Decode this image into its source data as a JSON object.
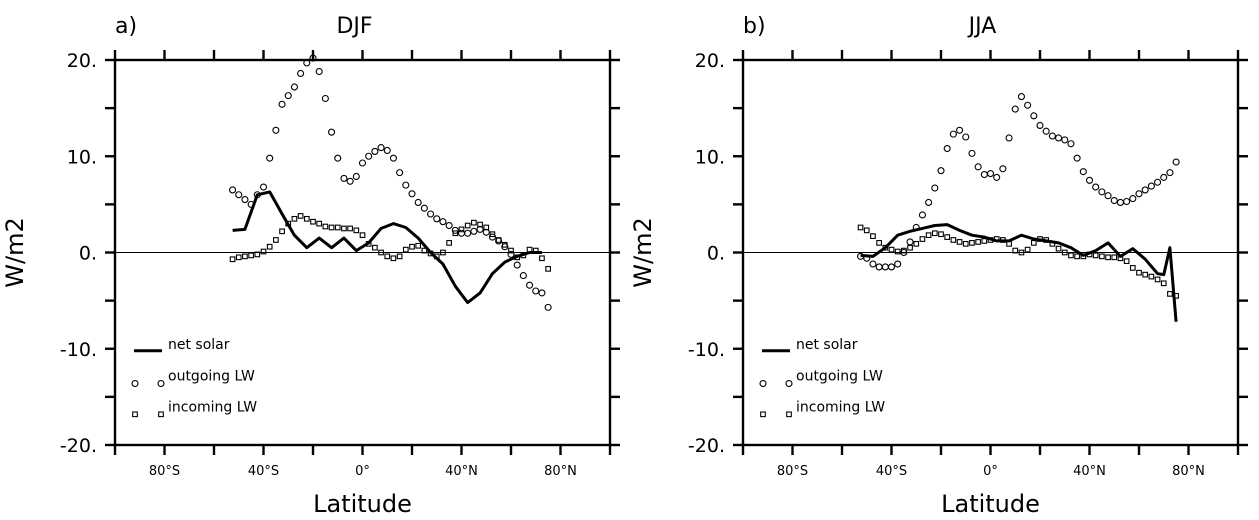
{
  "chart_data": [
    {
      "type": "line",
      "panel_label": "a)",
      "title": "DJF",
      "xlabel": "Latitude",
      "ylabel": "W/m2",
      "xlim": [
        -100,
        100
      ],
      "ylim": [
        -20,
        20
      ],
      "xticks": [
        {
          "value": -80,
          "label": "80°S"
        },
        {
          "value": -40,
          "label": "40°S"
        },
        {
          "value": 0,
          "label": "0°"
        },
        {
          "value": 40,
          "label": "40°N"
        },
        {
          "value": 80,
          "label": "80°N"
        }
      ],
      "yticks": [
        {
          "value": 20,
          "label": "20."
        },
        {
          "value": 10,
          "label": "10."
        },
        {
          "value": 0,
          "label": "0."
        },
        {
          "value": -10,
          "label": "-10."
        },
        {
          "value": -20,
          "label": "-20."
        }
      ],
      "legend_position": "bottom-left",
      "series": [
        {
          "name": "net solar",
          "style": "line",
          "x": [
            -52.5,
            -47.5,
            -42.5,
            -37.5,
            -32.5,
            -27.5,
            -22.5,
            -17.5,
            -12.5,
            -7.5,
            -2.5,
            2.5,
            7.5,
            12.5,
            17.5,
            22.5,
            27.5,
            32.5,
            37.5,
            42.5,
            47.5,
            52.5,
            57.5,
            62.5,
            67.5,
            72.5
          ],
          "y": [
            2.3,
            2.4,
            6.0,
            6.3,
            4.0,
            1.8,
            0.5,
            1.5,
            0.5,
            1.5,
            0.2,
            1.0,
            2.5,
            3.0,
            2.6,
            1.5,
            0.0,
            -1.2,
            -3.5,
            -5.2,
            -4.2,
            -2.2,
            -1.0,
            -0.4,
            0.0,
            0.0
          ]
        },
        {
          "name": "outgoing LW",
          "style": "circle",
          "x": [
            -52.5,
            -50,
            -47.5,
            -45,
            -42.5,
            -40,
            -37.5,
            -35,
            -32.5,
            -30,
            -27.5,
            -25,
            -22.5,
            -20,
            -17.5,
            -15,
            -12.5,
            -10,
            -7.5,
            -5,
            -2.5,
            0,
            2.5,
            5,
            7.5,
            10,
            12.5,
            15,
            17.5,
            20,
            22.5,
            25,
            27.5,
            30,
            32.5,
            35,
            37.5,
            40,
            42.5,
            45,
            47.5,
            50,
            52.5,
            55,
            57.5,
            60,
            62.5,
            65,
            67.5,
            70,
            72.5,
            75
          ],
          "y": [
            6.5,
            6.0,
            5.5,
            5.0,
            6.0,
            6.8,
            9.8,
            12.7,
            15.4,
            16.3,
            17.2,
            18.6,
            19.7,
            20.2,
            18.8,
            16.0,
            12.5,
            9.8,
            7.7,
            7.4,
            7.9,
            9.3,
            10.0,
            10.5,
            10.9,
            10.6,
            9.8,
            8.3,
            7.0,
            6.1,
            5.2,
            4.6,
            4.0,
            3.5,
            3.2,
            2.8,
            2.3,
            2.0,
            2.0,
            2.2,
            2.4,
            2.1,
            1.6,
            1.2,
            0.6,
            -0.2,
            -1.3,
            -2.4,
            -3.4,
            -4.0,
            -4.2,
            -5.7
          ]
        },
        {
          "name": "incoming LW",
          "style": "square",
          "x": [
            -52.5,
            -50,
            -47.5,
            -45,
            -42.5,
            -40,
            -37.5,
            -35,
            -32.5,
            -30,
            -27.5,
            -25,
            -22.5,
            -20,
            -17.5,
            -15,
            -12.5,
            -10,
            -7.5,
            -5,
            -2.5,
            0,
            2.5,
            5,
            7.5,
            10,
            12.5,
            15,
            17.5,
            20,
            22.5,
            25,
            27.5,
            30,
            32.5,
            35,
            37.5,
            40,
            42.5,
            45,
            47.5,
            50,
            52.5,
            55,
            57.5,
            60,
            62.5,
            65,
            67.5,
            70,
            72.5,
            75
          ],
          "y": [
            -0.7,
            -0.5,
            -0.4,
            -0.3,
            -0.2,
            0.1,
            0.6,
            1.3,
            2.2,
            3.0,
            3.5,
            3.8,
            3.5,
            3.2,
            3.0,
            2.7,
            2.6,
            2.6,
            2.5,
            2.5,
            2.3,
            1.8,
            0.9,
            0.5,
            0.0,
            -0.4,
            -0.6,
            -0.4,
            0.3,
            0.6,
            0.7,
            0.2,
            -0.1,
            -0.4,
            0.0,
            1.0,
            2.0,
            2.4,
            2.8,
            3.1,
            2.9,
            2.6,
            1.9,
            1.3,
            0.8,
            0.2,
            -0.5,
            -0.3,
            0.3,
            0.2,
            -0.6,
            -1.7
          ]
        }
      ]
    },
    {
      "type": "line",
      "panel_label": "b)",
      "title": "JJA",
      "xlabel": "Latitude",
      "ylabel": "W/m2",
      "xlim": [
        -100,
        100
      ],
      "ylim": [
        -20,
        20
      ],
      "xticks": [
        {
          "value": -80,
          "label": "80°S"
        },
        {
          "value": -40,
          "label": "40°S"
        },
        {
          "value": 0,
          "label": "0°"
        },
        {
          "value": 40,
          "label": "40°N"
        },
        {
          "value": 80,
          "label": "80°N"
        }
      ],
      "yticks": [
        {
          "value": 20,
          "label": "20."
        },
        {
          "value": 10,
          "label": "10."
        },
        {
          "value": 0,
          "label": "0."
        },
        {
          "value": -10,
          "label": "-10."
        },
        {
          "value": -20,
          "label": "-20."
        }
      ],
      "legend_position": "bottom-left",
      "series": [
        {
          "name": "net solar",
          "style": "line",
          "x": [
            -52.5,
            -47.5,
            -42.5,
            -37.5,
            -32.5,
            -27.5,
            -22.5,
            -17.5,
            -12.5,
            -7.5,
            -2.5,
            2.5,
            7.5,
            12.5,
            17.5,
            22.5,
            27.5,
            32.5,
            37.5,
            42.5,
            47.5,
            52.5,
            57.5,
            62.5,
            67.5,
            70,
            72.5,
            75
          ],
          "y": [
            -0.3,
            -0.4,
            0.5,
            1.8,
            2.2,
            2.5,
            2.8,
            2.9,
            2.3,
            1.8,
            1.6,
            1.2,
            1.2,
            1.8,
            1.4,
            1.2,
            1.0,
            0.5,
            -0.3,
            0.2,
            1.0,
            -0.4,
            0.4,
            -0.7,
            -2.2,
            -2.3,
            0.5,
            -7.2
          ]
        },
        {
          "name": "outgoing LW",
          "style": "circle",
          "x": [
            -52.5,
            -50,
            -47.5,
            -45,
            -42.5,
            -40,
            -37.5,
            -35,
            -32.5,
            -30,
            -27.5,
            -25,
            -22.5,
            -20,
            -17.5,
            -15,
            -12.5,
            -10,
            -7.5,
            -5,
            -2.5,
            0,
            2.5,
            5,
            7.5,
            10,
            12.5,
            15,
            17.5,
            20,
            22.5,
            25,
            27.5,
            30,
            32.5,
            35,
            37.5,
            40,
            42.5,
            45,
            47.5,
            50,
            52.5,
            55,
            57.5,
            60,
            62.5,
            65,
            67.5,
            70,
            72.5,
            75
          ],
          "y": [
            -0.4,
            -0.6,
            -1.2,
            -1.5,
            -1.5,
            -1.5,
            -1.2,
            0.0,
            1.1,
            2.6,
            3.9,
            5.2,
            6.7,
            8.5,
            10.8,
            12.3,
            12.7,
            12.0,
            10.3,
            8.9,
            8.1,
            8.2,
            7.8,
            8.7,
            11.9,
            14.9,
            16.2,
            15.3,
            14.2,
            13.2,
            12.6,
            12.1,
            11.9,
            11.7,
            11.3,
            9.8,
            8.4,
            7.5,
            6.8,
            6.3,
            5.9,
            5.4,
            5.2,
            5.3,
            5.6,
            6.1,
            6.5,
            6.9,
            7.3,
            7.8,
            8.3,
            9.4
          ]
        },
        {
          "name": "incoming LW",
          "style": "square",
          "x": [
            -52.5,
            -50,
            -47.5,
            -45,
            -42.5,
            -40,
            -37.5,
            -35,
            -32.5,
            -30,
            -27.5,
            -25,
            -22.5,
            -20,
            -17.5,
            -15,
            -12.5,
            -10,
            -7.5,
            -5,
            -2.5,
            0,
            2.5,
            5,
            7.5,
            10,
            12.5,
            15,
            17.5,
            20,
            22.5,
            25,
            27.5,
            30,
            32.5,
            35,
            37.5,
            40,
            42.5,
            45,
            47.5,
            50,
            52.5,
            55,
            57.5,
            60,
            62.5,
            65,
            67.5,
            70,
            72.5,
            75
          ],
          "y": [
            2.6,
            2.3,
            1.7,
            1.0,
            0.5,
            0.3,
            0.1,
            0.2,
            0.5,
            0.9,
            1.4,
            1.8,
            2.0,
            1.9,
            1.6,
            1.3,
            1.1,
            0.9,
            1.0,
            1.1,
            1.2,
            1.3,
            1.4,
            1.3,
            0.9,
            0.2,
            0.0,
            0.3,
            1.0,
            1.4,
            1.3,
            0.9,
            0.4,
            0.0,
            -0.3,
            -0.4,
            -0.4,
            -0.2,
            -0.3,
            -0.4,
            -0.5,
            -0.5,
            -0.6,
            -0.9,
            -1.6,
            -2.1,
            -2.3,
            -2.5,
            -2.8,
            -3.2,
            -4.3,
            -4.5
          ]
        }
      ]
    }
  ]
}
